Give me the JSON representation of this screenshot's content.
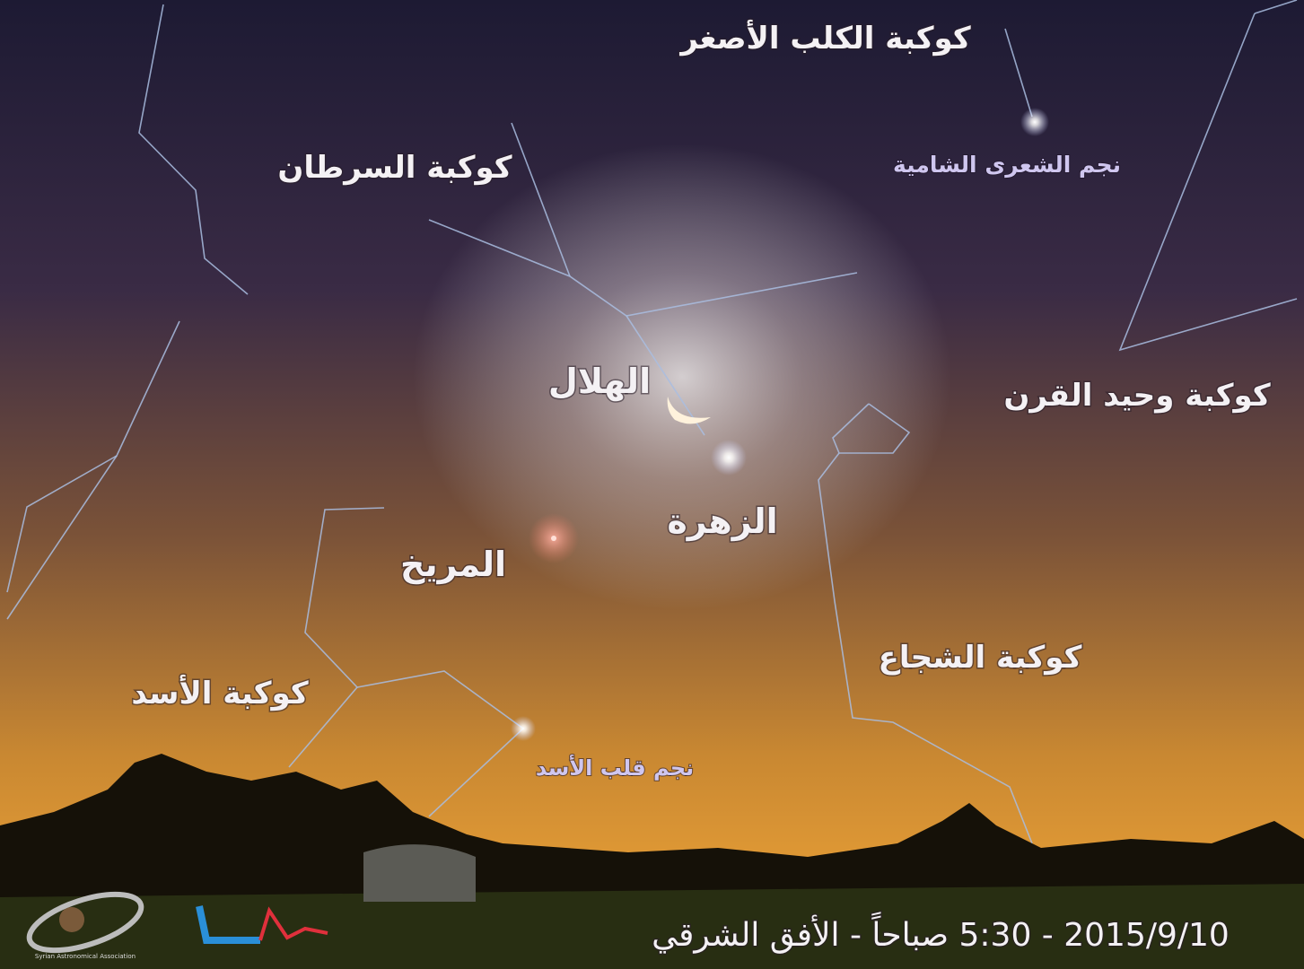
{
  "labels": {
    "canis_minor": "كوكبة الكلب الأصغر",
    "sirius": "نجم الشعرى الشامية",
    "cancer": "كوكبة السرطان",
    "monoceros": "كوكبة وحيد القرن",
    "crescent": "الهلال",
    "venus": "الزهرة",
    "mars": "المريخ",
    "hydra": "كوكبة الشجاع",
    "leo": "كوكبة الأسد",
    "regulus": "نجم قلب الأسد"
  },
  "footer": {
    "caption": "2015/9/10 - 5:30  صباحاً - الأفق الشرقي"
  },
  "logo": {
    "org": "Syrian Astronomical Association"
  }
}
